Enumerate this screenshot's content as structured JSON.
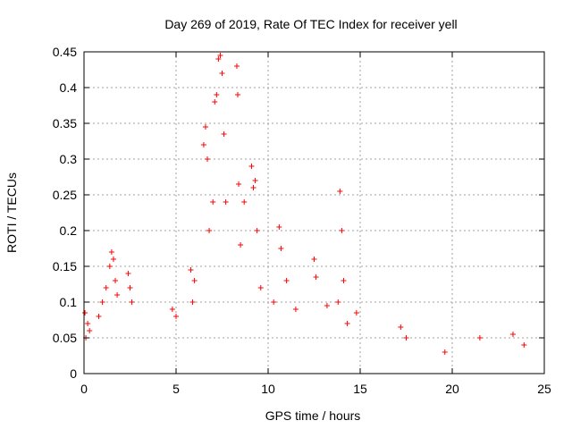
{
  "chart_data": {
    "type": "scatter",
    "title": "Day 269 of 2019, Rate Of TEC Index for receiver yell",
    "xlabel": "GPS time / hours",
    "ylabel": "ROTI / TECUs",
    "xlim": [
      0,
      25
    ],
    "ylim": [
      0,
      0.45
    ],
    "xticks": [
      "0",
      "5",
      "10",
      "15",
      "20",
      "25"
    ],
    "xtick_values": [
      0,
      5,
      10,
      15,
      20,
      25
    ],
    "yticks": [
      "0",
      "0.05",
      "0.1",
      "0.15",
      "0.2",
      "0.25",
      "0.3",
      "0.35",
      "0.4",
      "0.45"
    ],
    "ytick_values": [
      0,
      0.05,
      0.1,
      0.15,
      0.2,
      0.25,
      0.3,
      0.35,
      0.4,
      0.45
    ],
    "grid": true,
    "marker": "+",
    "series": [
      {
        "name": "ROTI",
        "color": "#ff0000",
        "points": [
          [
            0.05,
            0.085
          ],
          [
            0.1,
            0.05
          ],
          [
            0.2,
            0.07
          ],
          [
            0.3,
            0.06
          ],
          [
            0.8,
            0.08
          ],
          [
            1.0,
            0.1
          ],
          [
            1.2,
            0.12
          ],
          [
            1.4,
            0.15
          ],
          [
            1.5,
            0.17
          ],
          [
            1.6,
            0.16
          ],
          [
            1.7,
            0.13
          ],
          [
            1.8,
            0.11
          ],
          [
            2.4,
            0.14
          ],
          [
            2.5,
            0.12
          ],
          [
            2.6,
            0.1
          ],
          [
            4.8,
            0.09
          ],
          [
            5.0,
            0.08
          ],
          [
            5.9,
            0.1
          ],
          [
            5.8,
            0.145
          ],
          [
            6.0,
            0.13
          ],
          [
            6.5,
            0.32
          ],
          [
            6.6,
            0.345
          ],
          [
            6.7,
            0.3
          ],
          [
            6.8,
            0.2
          ],
          [
            7.0,
            0.24
          ],
          [
            7.1,
            0.38
          ],
          [
            7.2,
            0.39
          ],
          [
            7.3,
            0.44
          ],
          [
            7.4,
            0.445
          ],
          [
            7.5,
            0.42
          ],
          [
            7.6,
            0.335
          ],
          [
            7.7,
            0.24
          ],
          [
            8.3,
            0.43
          ],
          [
            8.35,
            0.39
          ],
          [
            8.4,
            0.265
          ],
          [
            8.5,
            0.18
          ],
          [
            8.7,
            0.24
          ],
          [
            9.1,
            0.29
          ],
          [
            9.2,
            0.26
          ],
          [
            9.3,
            0.27
          ],
          [
            9.4,
            0.2
          ],
          [
            9.6,
            0.12
          ],
          [
            10.3,
            0.1
          ],
          [
            10.6,
            0.205
          ],
          [
            10.7,
            0.175
          ],
          [
            11.0,
            0.13
          ],
          [
            11.5,
            0.09
          ],
          [
            12.5,
            0.16
          ],
          [
            12.6,
            0.135
          ],
          [
            13.2,
            0.095
          ],
          [
            13.8,
            0.1
          ],
          [
            13.9,
            0.255
          ],
          [
            14.0,
            0.2
          ],
          [
            14.1,
            0.13
          ],
          [
            14.3,
            0.07
          ],
          [
            14.8,
            0.085
          ],
          [
            17.2,
            0.065
          ],
          [
            17.5,
            0.05
          ],
          [
            19.6,
            0.03
          ],
          [
            21.5,
            0.05
          ],
          [
            23.3,
            0.055
          ],
          [
            23.9,
            0.04
          ]
        ]
      }
    ]
  }
}
